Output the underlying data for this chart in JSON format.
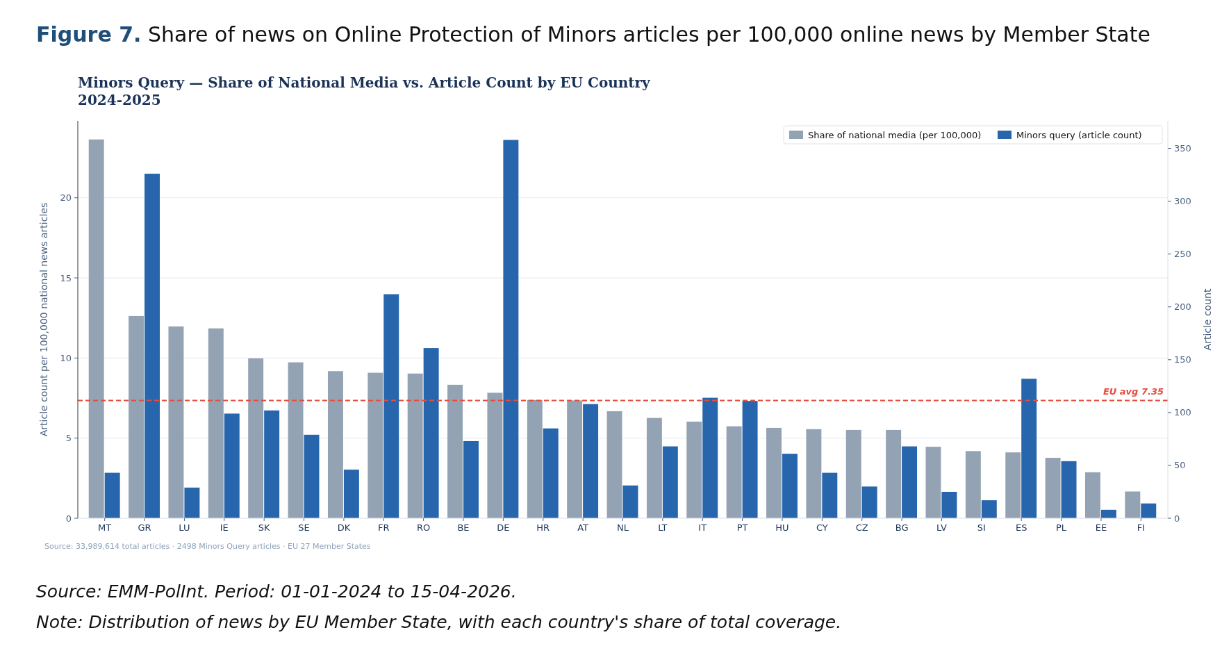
{
  "chart_data": {
    "type": "bar",
    "title": "Figure 7. Share of news on Online Protection of Minors articles per 100,000 online news by Member State",
    "subtitle": "Minors Query — Share of National Media vs. Article Count by EU Country\n2024-2025",
    "ylabel": "Article count per 100,000 national news articles",
    "y2label": "Article count",
    "categories": [
      "MT",
      "GR",
      "LU",
      "IE",
      "SK",
      "SE",
      "DK",
      "FR",
      "RO",
      "BE",
      "DE",
      "HR",
      "AT",
      "NL",
      "LT",
      "IT",
      "PT",
      "HU",
      "CY",
      "CZ",
      "BG",
      "LV",
      "SI",
      "ES",
      "PL",
      "EE",
      "FI"
    ],
    "series": [
      {
        "name": "Share of national media (per 100,000)",
        "color": "#94a3b3",
        "values": [
          23.64,
          12.62,
          11.97,
          11.85,
          9.98,
          9.73,
          9.18,
          9.08,
          9.03,
          8.33,
          7.83,
          7.38,
          7.35,
          6.68,
          6.26,
          6.03,
          5.74,
          5.64,
          5.56,
          5.51,
          5.51,
          4.46,
          4.19,
          4.11,
          3.77,
          2.87,
          1.67
        ]
      },
      {
        "name": "Minors query (article count)",
        "color": "#2766ad",
        "axis": "y2",
        "values": [
          43,
          326,
          29,
          99,
          102,
          79,
          46,
          212,
          161,
          73,
          358,
          85,
          108,
          31,
          68,
          114,
          111,
          61,
          43,
          30,
          68,
          25,
          17,
          132,
          54,
          8,
          14
        ]
      }
    ],
    "ylim": [
      0,
      24.8
    ],
    "yticks": [
      0,
      5,
      10,
      15,
      20
    ],
    "y2lim": [
      0,
      376
    ],
    "y2ticks": [
      0,
      50,
      100,
      150,
      200,
      250,
      300,
      350
    ],
    "grid": "y",
    "legend": "top right",
    "ref_lines": [
      {
        "axis": "y",
        "value": 7.35,
        "label": "EU avg 7.35",
        "color": "#e74c3c",
        "line_style": "dashed"
      }
    ],
    "annotations": [
      "Source: 33,989,614 total articles · 2498 Minors Query articles · EU 27 Member States",
      "Source: EMM-PolInt. Period: 01-01-2024 to 15-04-2026.",
      "Note: Distribution of news by EU Member State, with each country's share of total coverage."
    ]
  }
}
